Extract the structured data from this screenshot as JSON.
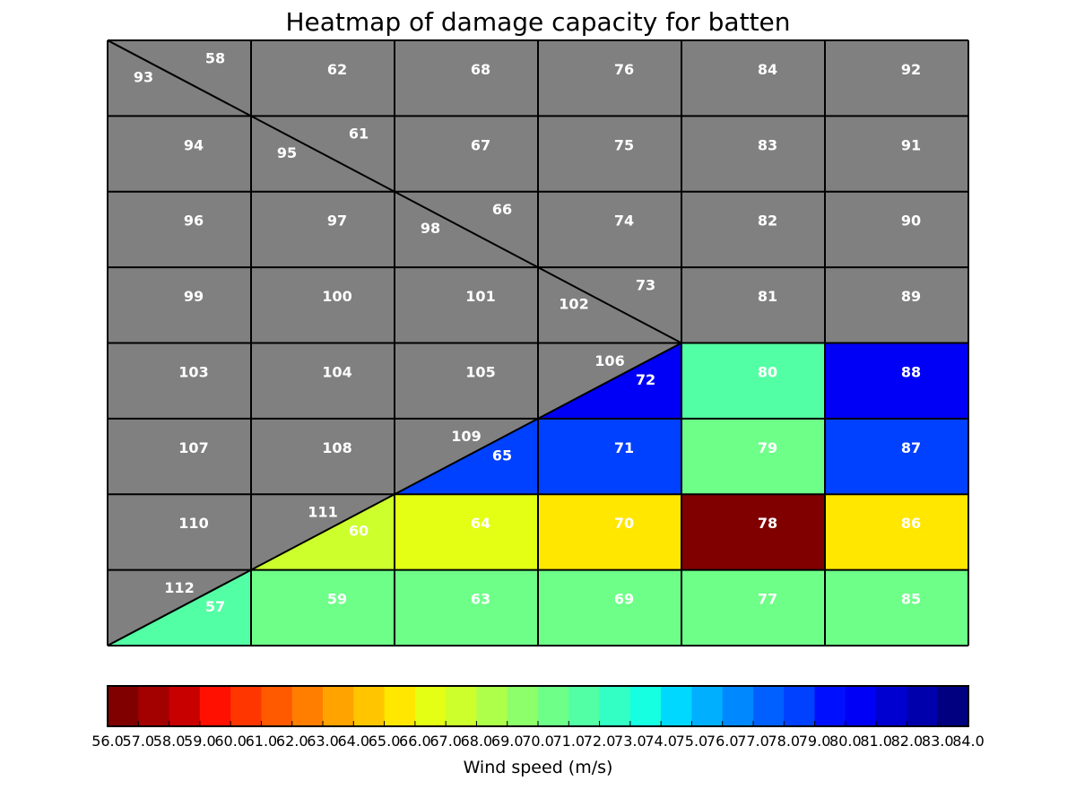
{
  "chart_data": {
    "type": "heatmap",
    "title": "Heatmap of damage capacity for batten",
    "colorbar": {
      "label": "Wind speed (m/s)",
      "min": 56.0,
      "max": 84.0,
      "step": 1.0,
      "colormap": "jet_r",
      "colors": [
        "#800000",
        "#a30000",
        "#c80000",
        "#ff1000",
        "#ff3600",
        "#ff5a00",
        "#ff7e00",
        "#ffa300",
        "#ffc600",
        "#ffe700",
        "#e4ff13",
        "#ccff2c",
        "#adff49",
        "#8cff6a",
        "#6eff88",
        "#53ffa4",
        "#33ffc4",
        "#16ffe1",
        "#00d8ff",
        "#00b0ff",
        "#0088ff",
        "#0060ff",
        "#0040ff",
        "#0010ff",
        "#0000f6",
        "#0000d1",
        "#0000ad",
        "#000080"
      ],
      "tick_labels": [
        "56.0",
        "57.0",
        "58.0",
        "59.0",
        "60.0",
        "61.0",
        "62.0",
        "63.0",
        "64.0",
        "65.0",
        "66.0",
        "67.0",
        "68.0",
        "69.0",
        "70.0",
        "71.0",
        "72.0",
        "73.0",
        "74.0",
        "75.0",
        "76.0",
        "77.0",
        "78.0",
        "79.0",
        "80.0",
        "81.0",
        "82.0",
        "83.0",
        "84.0"
      ]
    },
    "no_data_color": "#808080",
    "grid": {
      "rows": 8,
      "cols": 6
    },
    "cells": [
      {
        "row": 0,
        "col": 0,
        "split": "upper",
        "ids": [
          "58",
          "93"
        ],
        "values": [
          null,
          null
        ]
      },
      {
        "row": 0,
        "col": 1,
        "id": "62",
        "value": null
      },
      {
        "row": 0,
        "col": 2,
        "id": "68",
        "value": null
      },
      {
        "row": 0,
        "col": 3,
        "id": "76",
        "value": null
      },
      {
        "row": 0,
        "col": 4,
        "id": "84",
        "value": null
      },
      {
        "row": 0,
        "col": 5,
        "id": "92",
        "value": null
      },
      {
        "row": 1,
        "col": 0,
        "id": "94",
        "value": null
      },
      {
        "row": 1,
        "col": 1,
        "split": "upper",
        "ids": [
          "61",
          "95"
        ],
        "values": [
          null,
          null
        ]
      },
      {
        "row": 1,
        "col": 2,
        "id": "67",
        "value": null
      },
      {
        "row": 1,
        "col": 3,
        "id": "75",
        "value": null
      },
      {
        "row": 1,
        "col": 4,
        "id": "83",
        "value": null
      },
      {
        "row": 1,
        "col": 5,
        "id": "91",
        "value": null
      },
      {
        "row": 2,
        "col": 0,
        "id": "96",
        "value": null
      },
      {
        "row": 2,
        "col": 1,
        "id": "97",
        "value": null
      },
      {
        "row": 2,
        "col": 2,
        "split": "upper",
        "ids": [
          "66",
          "98"
        ],
        "values": [
          null,
          null
        ]
      },
      {
        "row": 2,
        "col": 3,
        "id": "74",
        "value": null
      },
      {
        "row": 2,
        "col": 4,
        "id": "82",
        "value": null
      },
      {
        "row": 2,
        "col": 5,
        "id": "90",
        "value": null
      },
      {
        "row": 3,
        "col": 0,
        "id": "99",
        "value": null
      },
      {
        "row": 3,
        "col": 1,
        "id": "100",
        "value": null
      },
      {
        "row": 3,
        "col": 2,
        "id": "101",
        "value": null
      },
      {
        "row": 3,
        "col": 3,
        "split": "upper",
        "ids": [
          "73",
          "102"
        ],
        "values": [
          null,
          null
        ]
      },
      {
        "row": 3,
        "col": 4,
        "id": "81",
        "value": null
      },
      {
        "row": 3,
        "col": 5,
        "id": "89",
        "value": null
      },
      {
        "row": 4,
        "col": 0,
        "id": "103",
        "value": null
      },
      {
        "row": 4,
        "col": 1,
        "id": "104",
        "value": null
      },
      {
        "row": 4,
        "col": 2,
        "id": "105",
        "value": null
      },
      {
        "row": 4,
        "col": 3,
        "split": "lower",
        "ids": [
          "106",
          "72"
        ],
        "values": [
          null,
          80.2
        ]
      },
      {
        "row": 4,
        "col": 4,
        "id": "80",
        "value": 71.9
      },
      {
        "row": 4,
        "col": 5,
        "id": "88",
        "value": 80.3
      },
      {
        "row": 5,
        "col": 0,
        "id": "107",
        "value": null
      },
      {
        "row": 5,
        "col": 1,
        "id": "108",
        "value": null
      },
      {
        "row": 5,
        "col": 2,
        "split": "lower",
        "ids": [
          "109",
          "65"
        ],
        "values": [
          null,
          78.5
        ]
      },
      {
        "row": 5,
        "col": 3,
        "id": "71",
        "value": 78.6
      },
      {
        "row": 5,
        "col": 4,
        "id": "79",
        "value": 70.9
      },
      {
        "row": 5,
        "col": 5,
        "id": "87",
        "value": 78.6
      },
      {
        "row": 6,
        "col": 0,
        "id": "110",
        "value": null
      },
      {
        "row": 6,
        "col": 1,
        "split": "lower",
        "ids": [
          "111",
          "60"
        ],
        "values": [
          null,
          67.4
        ]
      },
      {
        "row": 6,
        "col": 2,
        "id": "64",
        "value": 66.6
      },
      {
        "row": 6,
        "col": 3,
        "id": "70",
        "value": 65.5
      },
      {
        "row": 6,
        "col": 4,
        "id": "78",
        "value": 56.2
      },
      {
        "row": 6,
        "col": 5,
        "id": "86",
        "value": 65.5
      },
      {
        "row": 7,
        "col": 0,
        "split": "lower",
        "ids": [
          "112",
          "57"
        ],
        "values": [
          null,
          71.9
        ]
      },
      {
        "row": 7,
        "col": 1,
        "id": "59",
        "value": 70.8
      },
      {
        "row": 7,
        "col": 2,
        "id": "63",
        "value": 70.8
      },
      {
        "row": 7,
        "col": 3,
        "id": "69",
        "value": 70.8
      },
      {
        "row": 7,
        "col": 4,
        "id": "77",
        "value": 70.8
      },
      {
        "row": 7,
        "col": 5,
        "id": "85",
        "value": 70.8
      }
    ]
  }
}
